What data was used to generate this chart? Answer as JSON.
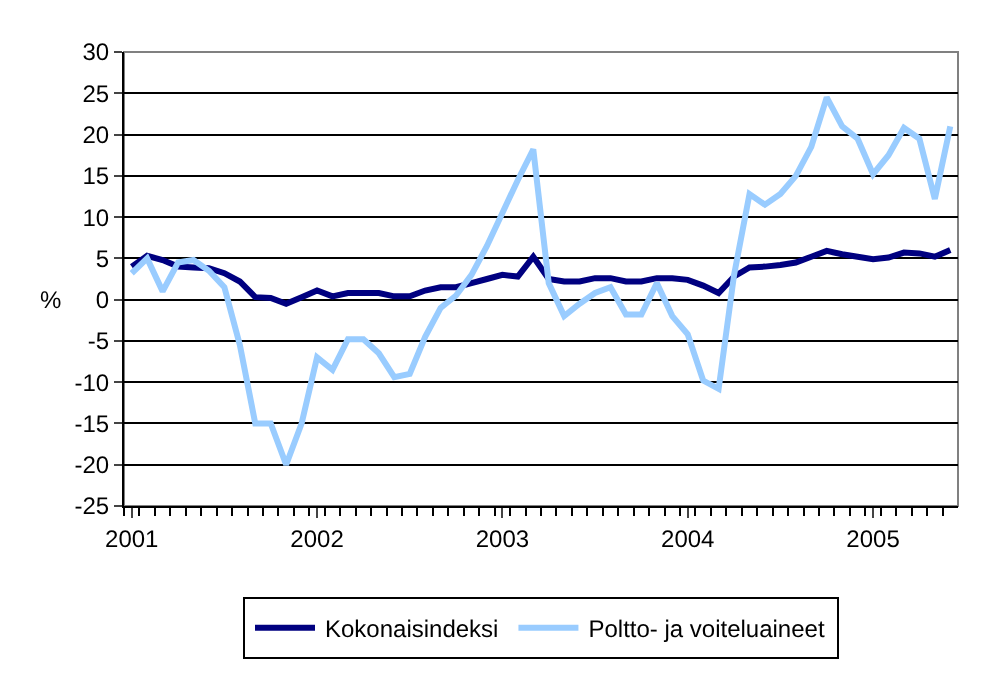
{
  "chart_data": {
    "type": "line",
    "ylabel": "%",
    "categories": [
      "2001",
      null,
      null,
      null,
      null,
      null,
      null,
      null,
      null,
      null,
      null,
      null,
      "2002",
      null,
      null,
      null,
      null,
      null,
      null,
      null,
      null,
      null,
      null,
      null,
      "2003",
      null,
      null,
      null,
      null,
      null,
      null,
      null,
      null,
      null,
      null,
      null,
      "2004",
      null,
      null,
      null,
      null,
      null,
      null,
      null,
      null,
      null,
      null,
      null,
      "2005",
      null,
      null,
      null,
      null,
      null
    ],
    "series": [
      {
        "name": "Kokonaisindeksi",
        "color": "#000080",
        "values": [
          4.0,
          5.3,
          4.8,
          4.0,
          3.9,
          3.8,
          3.2,
          2.2,
          0.3,
          0.2,
          -0.5,
          0.3,
          1.1,
          0.4,
          0.8,
          0.8,
          0.8,
          0.4,
          0.4,
          1.1,
          1.5,
          1.5,
          2.0,
          2.5,
          3.0,
          2.8,
          5.2,
          2.5,
          2.2,
          2.2,
          2.6,
          2.6,
          2.2,
          2.2,
          2.6,
          2.6,
          2.4,
          1.7,
          0.8,
          2.8,
          3.9,
          4.0,
          4.2,
          4.5,
          5.2,
          5.9,
          5.5,
          5.2,
          4.9,
          5.1,
          5.7,
          5.6,
          5.2,
          6.0
        ]
      },
      {
        "name": "Poltto- ja voiteluaineet",
        "color": "#99ccff",
        "values": [
          3.2,
          5.0,
          1.0,
          4.5,
          4.8,
          3.5,
          1.5,
          -5.5,
          -15,
          -15,
          -20,
          -15,
          -7,
          -8.5,
          -4.8,
          -4.8,
          -6.5,
          -9.4,
          -9,
          -4.5,
          -1,
          0.5,
          3,
          6.5,
          10.5,
          14.5,
          18.2,
          2,
          -2,
          -0.5,
          0.8,
          1.5,
          -1.8,
          -1.8,
          2,
          -2,
          -4.2,
          -9.8,
          -10.8,
          3,
          12.8,
          11.5,
          12.8,
          15,
          18.5,
          24.5,
          21,
          19.5,
          15.2,
          17.5,
          20.8,
          19.5,
          12.2,
          21
        ]
      }
    ],
    "ylim": [
      -25,
      30
    ],
    "yticks": [
      -25,
      -20,
      -15,
      -10,
      -5,
      0,
      5,
      10,
      15,
      20,
      25,
      30
    ],
    "grid": "y",
    "legend": "bottom",
    "marker": "none",
    "line_style": "solid"
  }
}
